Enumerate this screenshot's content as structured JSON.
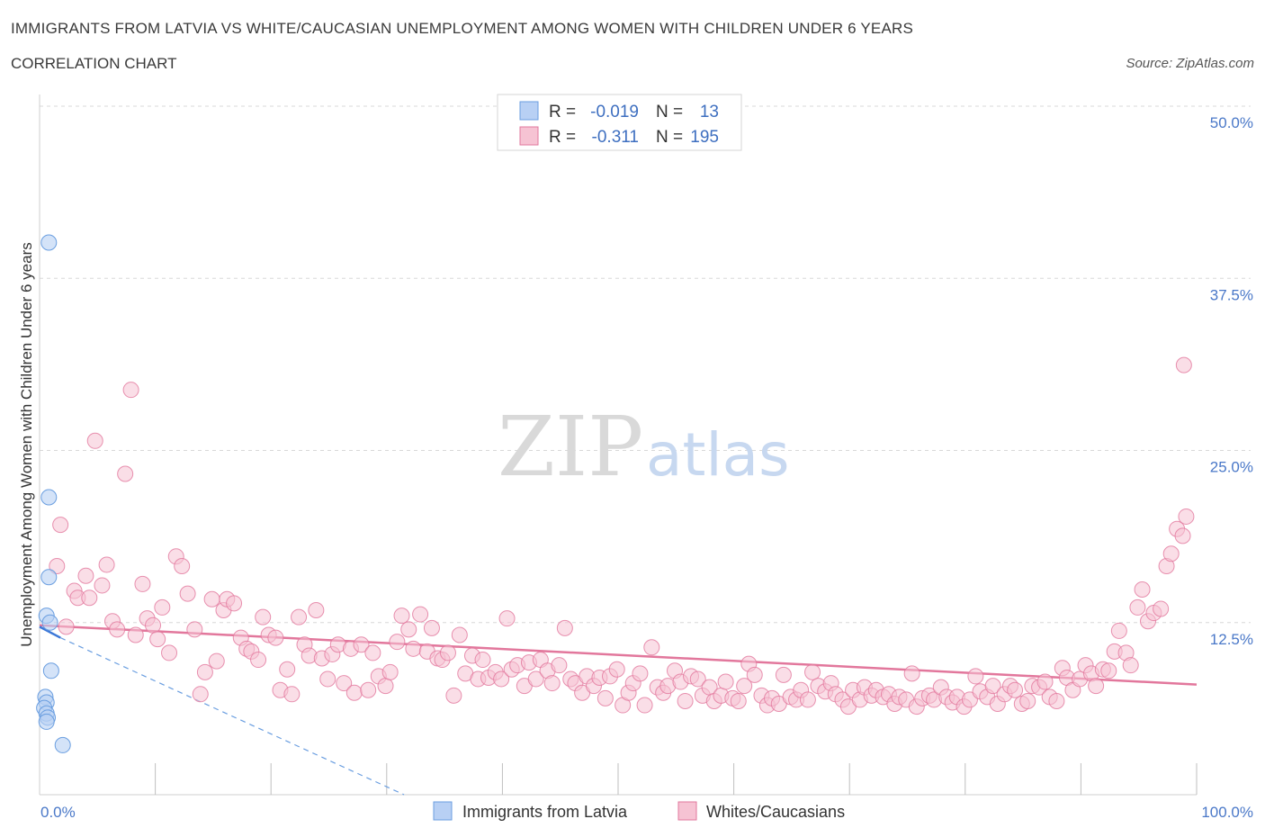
{
  "header": {
    "title": "IMMIGRANTS FROM LATVIA VS WHITE/CAUCASIAN UNEMPLOYMENT AMONG WOMEN WITH CHILDREN UNDER 6 YEARS",
    "subtitle": "CORRELATION CHART",
    "source": "Source: ZipAtlas.com"
  },
  "watermark": {
    "part1": "ZIP",
    "part2": "atlas"
  },
  "colors": {
    "blue": "#6a9ee0",
    "blue_fill": "#b8d0f4",
    "pink": "#e2779c",
    "pink_fill": "#f6c3d3",
    "axis_text": "#4a78c8",
    "grid": "#d8d8d8"
  },
  "legend": {
    "rows": [
      {
        "r_label": "R =",
        "r_value": "-0.019",
        "n_label": "N =",
        "n_value": "13"
      },
      {
        "r_label": "R =",
        "r_value": "-0.311",
        "n_label": "N =",
        "n_value": "195"
      }
    ]
  },
  "bottom_legend": {
    "blue_label": "Immigrants from Latvia",
    "pink_label": "Whites/Caucasians"
  },
  "chart_data": {
    "type": "scatter",
    "title": "IMMIGRANTS FROM LATVIA VS WHITE/CAUCASIAN UNEMPLOYMENT AMONG WOMEN WITH CHILDREN UNDER 6 YEARS",
    "xlabel": "",
    "ylabel": "Unemployment Among Women with Children Under 6 years",
    "xlim": [
      0,
      100
    ],
    "ylim": [
      0,
      50
    ],
    "x_tick_labels": [
      "0.0%",
      "100.0%"
    ],
    "y_ticks": [
      12.5,
      25.0,
      37.5,
      50.0
    ],
    "y_tick_labels": [
      "12.5%",
      "25.0%",
      "37.5%",
      "50.0%"
    ],
    "grid": true,
    "series": [
      {
        "name": "Immigrants from Latvia",
        "color": "#6a9ee0",
        "r": -0.019,
        "n": 13,
        "trend_solid": {
          "x": [
            0,
            1.8
          ],
          "y": [
            12.2,
            11.4
          ]
        },
        "trend_dashed": {
          "x": [
            1.8,
            31.5
          ],
          "y": [
            11.4,
            0
          ]
        },
        "points": [
          [
            0.8,
            40.1
          ],
          [
            0.8,
            21.6
          ],
          [
            0.8,
            15.8
          ],
          [
            0.6,
            13.0
          ],
          [
            0.9,
            12.5
          ],
          [
            1.0,
            9.0
          ],
          [
            0.5,
            7.1
          ],
          [
            0.6,
            6.7
          ],
          [
            0.4,
            6.3
          ],
          [
            0.6,
            5.9
          ],
          [
            0.7,
            5.6
          ],
          [
            0.6,
            5.3
          ],
          [
            2.0,
            3.6
          ]
        ]
      },
      {
        "name": "Whites/Caucasians",
        "color": "#e2779c",
        "r": -0.311,
        "n": 195,
        "trend": {
          "x": [
            0,
            100
          ],
          "y": [
            12.3,
            8.0
          ]
        },
        "points": [
          [
            1.5,
            16.6
          ],
          [
            1.8,
            19.6
          ],
          [
            2.3,
            12.2
          ],
          [
            3.0,
            14.8
          ],
          [
            3.3,
            14.3
          ],
          [
            4.0,
            15.9
          ],
          [
            4.3,
            14.3
          ],
          [
            4.8,
            25.7
          ],
          [
            5.4,
            15.2
          ],
          [
            5.8,
            16.7
          ],
          [
            6.3,
            12.6
          ],
          [
            6.7,
            12.0
          ],
          [
            7.4,
            23.3
          ],
          [
            7.9,
            29.4
          ],
          [
            8.3,
            11.6
          ],
          [
            8.9,
            15.3
          ],
          [
            9.3,
            12.8
          ],
          [
            9.8,
            12.3
          ],
          [
            10.2,
            11.3
          ],
          [
            10.6,
            13.6
          ],
          [
            11.2,
            10.3
          ],
          [
            11.8,
            17.3
          ],
          [
            12.3,
            16.6
          ],
          [
            12.8,
            14.6
          ],
          [
            13.4,
            12.0
          ],
          [
            13.9,
            7.3
          ],
          [
            14.3,
            8.9
          ],
          [
            14.9,
            14.2
          ],
          [
            15.3,
            9.7
          ],
          [
            15.9,
            13.4
          ],
          [
            16.2,
            14.2
          ],
          [
            16.8,
            13.9
          ],
          [
            17.4,
            11.4
          ],
          [
            17.9,
            10.6
          ],
          [
            18.3,
            10.4
          ],
          [
            18.9,
            9.8
          ],
          [
            19.3,
            12.9
          ],
          [
            19.8,
            11.6
          ],
          [
            20.4,
            11.4
          ],
          [
            20.8,
            7.6
          ],
          [
            21.4,
            9.1
          ],
          [
            21.8,
            7.3
          ],
          [
            22.4,
            12.9
          ],
          [
            22.9,
            10.9
          ],
          [
            23.3,
            10.1
          ],
          [
            23.9,
            13.4
          ],
          [
            24.4,
            9.9
          ],
          [
            24.9,
            8.4
          ],
          [
            25.3,
            10.2
          ],
          [
            25.8,
            10.9
          ],
          [
            26.3,
            8.1
          ],
          [
            26.9,
            10.6
          ],
          [
            27.2,
            7.4
          ],
          [
            27.8,
            10.9
          ],
          [
            28.4,
            7.6
          ],
          [
            28.8,
            10.3
          ],
          [
            29.3,
            8.6
          ],
          [
            29.9,
            7.9
          ],
          [
            30.3,
            8.9
          ],
          [
            30.9,
            11.1
          ],
          [
            31.3,
            13.0
          ],
          [
            31.9,
            12.0
          ],
          [
            32.3,
            10.6
          ],
          [
            32.9,
            13.1
          ],
          [
            33.5,
            10.4
          ],
          [
            33.9,
            12.1
          ],
          [
            34.4,
            9.9
          ],
          [
            34.8,
            9.8
          ],
          [
            35.3,
            10.3
          ],
          [
            35.8,
            7.2
          ],
          [
            36.3,
            11.6
          ],
          [
            36.8,
            8.8
          ],
          [
            37.4,
            10.1
          ],
          [
            37.9,
            8.4
          ],
          [
            38.3,
            9.8
          ],
          [
            38.8,
            8.5
          ],
          [
            39.4,
            8.9
          ],
          [
            39.9,
            8.4
          ],
          [
            40.4,
            12.8
          ],
          [
            40.8,
            9.1
          ],
          [
            41.3,
            9.4
          ],
          [
            41.9,
            7.9
          ],
          [
            42.3,
            9.6
          ],
          [
            42.9,
            8.4
          ],
          [
            43.3,
            9.8
          ],
          [
            43.9,
            9.0
          ],
          [
            44.3,
            8.1
          ],
          [
            44.9,
            9.4
          ],
          [
            45.4,
            12.1
          ],
          [
            45.9,
            8.4
          ],
          [
            46.3,
            8.1
          ],
          [
            46.9,
            7.4
          ],
          [
            47.3,
            8.6
          ],
          [
            47.9,
            7.9
          ],
          [
            48.4,
            8.5
          ],
          [
            48.9,
            7.0
          ],
          [
            49.3,
            8.6
          ],
          [
            49.9,
            9.1
          ],
          [
            50.4,
            6.5
          ],
          [
            50.9,
            7.4
          ],
          [
            51.3,
            8.1
          ],
          [
            51.9,
            8.8
          ],
          [
            52.3,
            6.5
          ],
          [
            52.9,
            10.7
          ],
          [
            53.4,
            7.8
          ],
          [
            53.9,
            7.4
          ],
          [
            54.3,
            7.9
          ],
          [
            54.9,
            9.0
          ],
          [
            55.4,
            8.2
          ],
          [
            55.8,
            6.8
          ],
          [
            56.3,
            8.6
          ],
          [
            56.9,
            8.4
          ],
          [
            57.3,
            7.2
          ],
          [
            57.9,
            7.8
          ],
          [
            58.3,
            6.8
          ],
          [
            58.9,
            7.2
          ],
          [
            59.3,
            8.2
          ],
          [
            59.9,
            7.0
          ],
          [
            60.4,
            6.8
          ],
          [
            60.9,
            7.9
          ],
          [
            61.3,
            9.5
          ],
          [
            61.8,
            8.7
          ],
          [
            62.4,
            7.2
          ],
          [
            62.9,
            6.5
          ],
          [
            63.3,
            7.0
          ],
          [
            63.9,
            6.6
          ],
          [
            64.3,
            8.7
          ],
          [
            64.9,
            7.1
          ],
          [
            65.4,
            6.9
          ],
          [
            65.8,
            7.6
          ],
          [
            66.4,
            6.9
          ],
          [
            66.8,
            8.9
          ],
          [
            67.3,
            7.9
          ],
          [
            67.9,
            7.5
          ],
          [
            68.4,
            8.1
          ],
          [
            68.8,
            7.3
          ],
          [
            69.4,
            6.9
          ],
          [
            69.9,
            6.4
          ],
          [
            70.3,
            7.6
          ],
          [
            70.9,
            6.9
          ],
          [
            71.3,
            7.8
          ],
          [
            71.9,
            7.2
          ],
          [
            72.3,
            7.6
          ],
          [
            72.9,
            7.1
          ],
          [
            73.4,
            7.3
          ],
          [
            73.9,
            6.6
          ],
          [
            74.3,
            7.1
          ],
          [
            74.9,
            6.9
          ],
          [
            75.4,
            8.8
          ],
          [
            75.8,
            6.4
          ],
          [
            76.3,
            7.0
          ],
          [
            76.9,
            7.2
          ],
          [
            77.3,
            6.9
          ],
          [
            77.9,
            7.8
          ],
          [
            78.4,
            7.1
          ],
          [
            78.9,
            6.7
          ],
          [
            79.3,
            7.1
          ],
          [
            79.9,
            6.4
          ],
          [
            80.4,
            6.9
          ],
          [
            80.9,
            8.6
          ],
          [
            81.3,
            7.5
          ],
          [
            81.9,
            7.1
          ],
          [
            82.4,
            7.9
          ],
          [
            82.8,
            6.6
          ],
          [
            83.4,
            7.3
          ],
          [
            83.9,
            7.9
          ],
          [
            84.3,
            7.6
          ],
          [
            84.9,
            6.6
          ],
          [
            85.4,
            6.8
          ],
          [
            85.8,
            7.9
          ],
          [
            86.4,
            7.8
          ],
          [
            86.9,
            8.2
          ],
          [
            87.3,
            7.1
          ],
          [
            87.9,
            6.8
          ],
          [
            88.4,
            9.2
          ],
          [
            88.8,
            8.5
          ],
          [
            89.3,
            7.6
          ],
          [
            89.9,
            8.4
          ],
          [
            90.4,
            9.4
          ],
          [
            90.9,
            8.8
          ],
          [
            91.3,
            7.9
          ],
          [
            91.9,
            9.1
          ],
          [
            92.4,
            9.0
          ],
          [
            92.9,
            10.4
          ],
          [
            93.3,
            11.9
          ],
          [
            93.9,
            10.3
          ],
          [
            94.3,
            9.4
          ],
          [
            94.9,
            13.6
          ],
          [
            95.3,
            14.9
          ],
          [
            95.8,
            12.6
          ],
          [
            96.3,
            13.2
          ],
          [
            96.9,
            13.5
          ],
          [
            97.4,
            16.6
          ],
          [
            97.8,
            17.5
          ],
          [
            98.3,
            19.3
          ],
          [
            98.8,
            18.8
          ],
          [
            99.1,
            20.2
          ],
          [
            98.9,
            31.2
          ]
        ]
      }
    ]
  }
}
